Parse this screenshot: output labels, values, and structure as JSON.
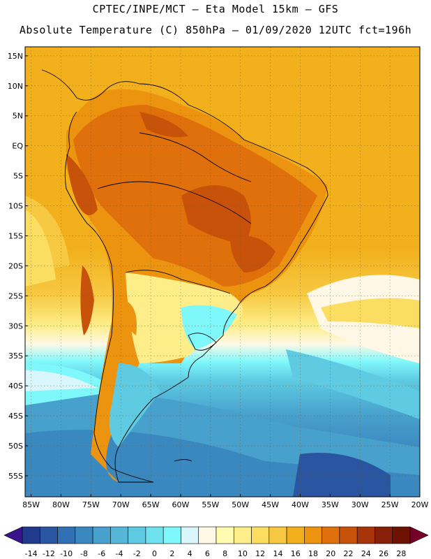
{
  "header": {
    "line1": "CPTEC/INPE/MCT –  Eta Model 15km – GFS",
    "line2": "Absolute Temperature (C) 850hPa – 01/09/2020 12UTC fct=196h"
  },
  "map": {
    "lat_ticks": [
      "15N",
      "10N",
      "5N",
      "EQ",
      "5S",
      "10S",
      "15S",
      "20S",
      "25S",
      "30S",
      "35S",
      "40S",
      "45S",
      "50S",
      "55S"
    ],
    "lon_ticks": [
      "85W",
      "80W",
      "75W",
      "70W",
      "65W",
      "60W",
      "55W",
      "50W",
      "45W",
      "40W",
      "35W",
      "30W",
      "25W",
      "20W"
    ],
    "lat_extent": [
      16.5,
      -58.5
    ],
    "lon_extent": [
      -86,
      -20
    ]
  },
  "colorbar": {
    "labels": [
      "-14",
      "-12",
      "-10",
      "-8",
      "-6",
      "-4",
      "-2",
      "0",
      "2",
      "4",
      "6",
      "8",
      "10",
      "12",
      "14",
      "16",
      "18",
      "20",
      "22",
      "24",
      "26",
      "28"
    ],
    "colors": [
      "#203a8c",
      "#2a55a0",
      "#3170b2",
      "#3a88c0",
      "#48a0cc",
      "#55b6d8",
      "#5ecbe3",
      "#6de2ee",
      "#7ff8fb",
      "#d8f6fb",
      "#fff8e6",
      "#fffbb0",
      "#fdee8a",
      "#fbdd62",
      "#f7c942",
      "#f2b01c",
      "#ec9410",
      "#e0700c",
      "#c9520a",
      "#a8340a",
      "#862008",
      "#6e1204"
    ],
    "arrow_low": "#3a148a",
    "arrow_high": "#780028"
  }
}
